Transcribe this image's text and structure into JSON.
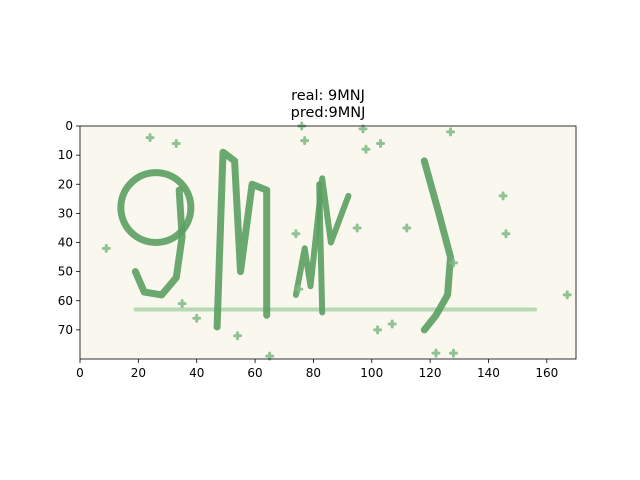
{
  "chart_data": {
    "type": "image",
    "title_lines": [
      "real: 9MNJ",
      "pred:9MNJ"
    ],
    "xlim": [
      0,
      170
    ],
    "ylim": [
      80,
      0
    ],
    "xticks": [
      0,
      20,
      40,
      60,
      80,
      100,
      120,
      140,
      160
    ],
    "yticks": [
      0,
      10,
      20,
      30,
      40,
      50,
      60,
      70
    ],
    "xtick_labels": [
      "0",
      "20",
      "40",
      "60",
      "80",
      "100",
      "120",
      "140",
      "160"
    ],
    "ytick_labels": [
      "0",
      "10",
      "20",
      "30",
      "40",
      "50",
      "60",
      "70"
    ],
    "background_color": "#faf8ee",
    "ink_color": "#5a9e62",
    "captcha_text": "9MNJ",
    "strike_line": {
      "x1": 19,
      "x2": 156,
      "y": 63
    },
    "noise_dots": [
      [
        24,
        4
      ],
      [
        33,
        6
      ],
      [
        9,
        42
      ],
      [
        35,
        61
      ],
      [
        40,
        66
      ],
      [
        54,
        72
      ],
      [
        65,
        79
      ],
      [
        76,
        0
      ],
      [
        77,
        5
      ],
      [
        74,
        37
      ],
      [
        75,
        56
      ],
      [
        97,
        1
      ],
      [
        98,
        8
      ],
      [
        103,
        6
      ],
      [
        95,
        35
      ],
      [
        112,
        35
      ],
      [
        102,
        70
      ],
      [
        107,
        68
      ],
      [
        127,
        2
      ],
      [
        145,
        24
      ],
      [
        146,
        37
      ],
      [
        167,
        58
      ],
      [
        122,
        78
      ],
      [
        128,
        78
      ],
      [
        128,
        47
      ]
    ]
  }
}
